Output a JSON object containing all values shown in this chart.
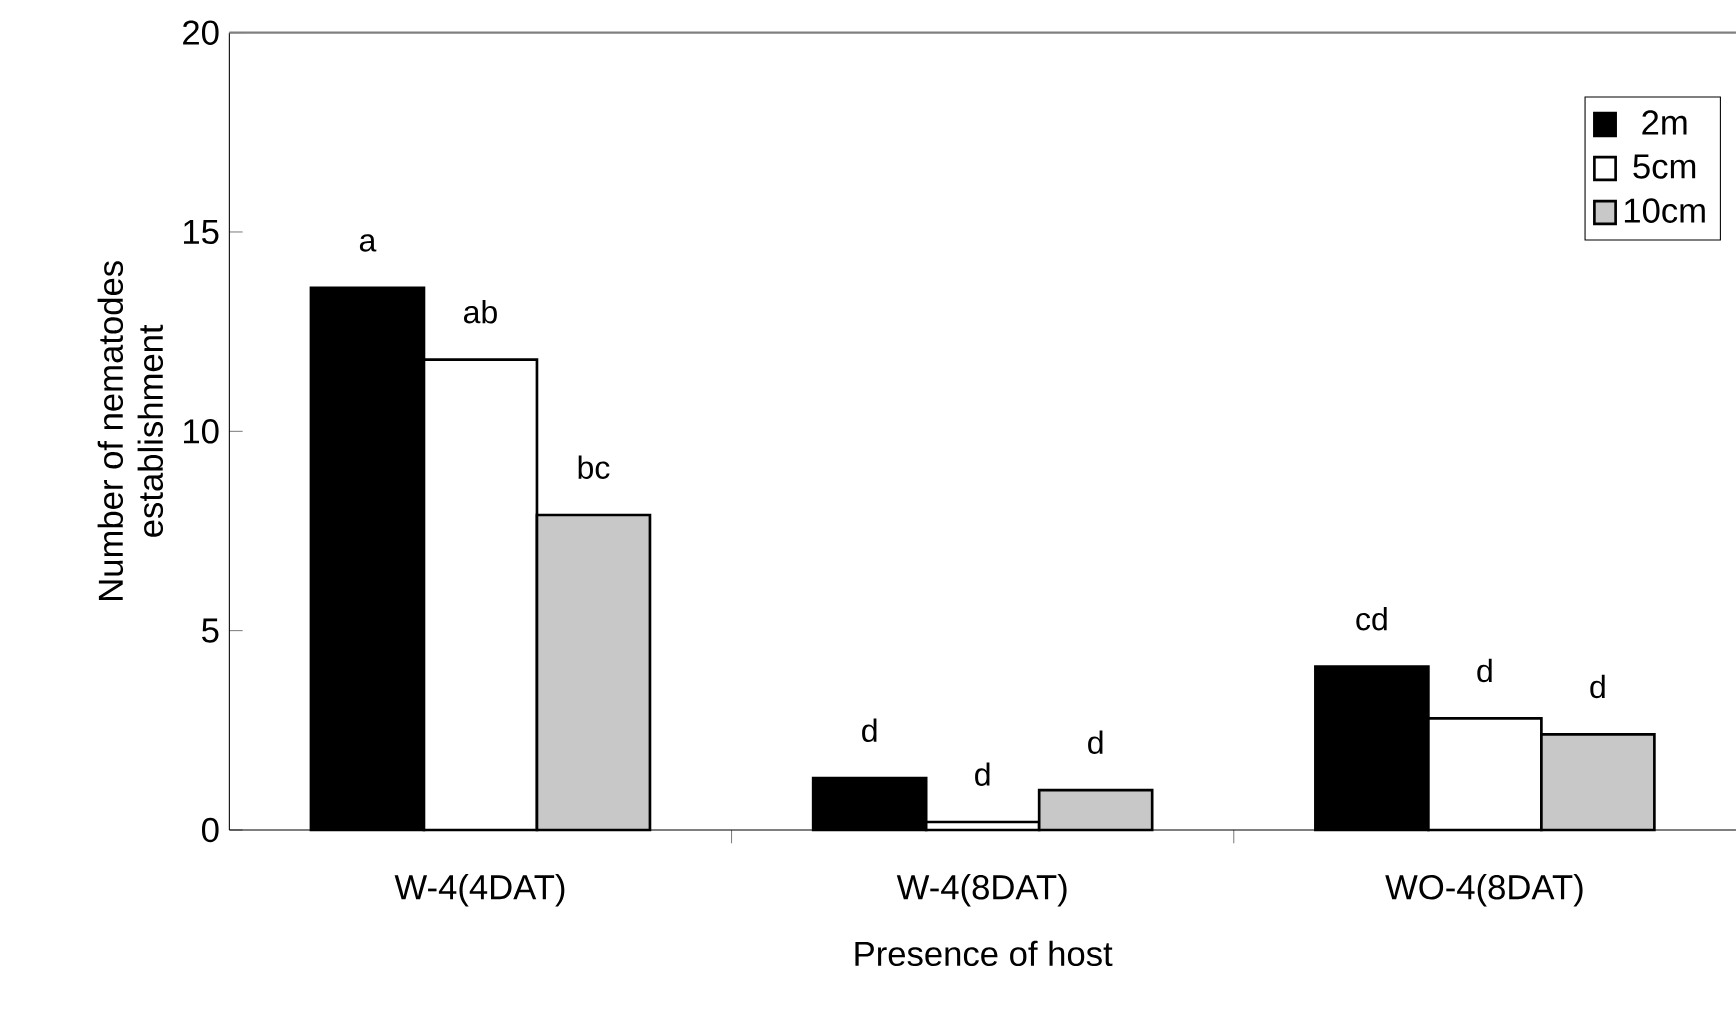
{
  "chart_data": {
    "type": "bar",
    "xlabel": "Presence of host",
    "ylabel": "Number of nematodes\nestablishment",
    "categories": [
      "W-4(4DAT)",
      "W-4(8DAT)",
      "WO-4(8DAT)"
    ],
    "series": [
      {
        "name": "2m",
        "color": "#000000",
        "values": [
          13.6,
          1.3,
          4.1
        ],
        "value_labels": [
          "a",
          "d",
          "cd"
        ]
      },
      {
        "name": "5cm",
        "color": "#ffffff",
        "values": [
          11.8,
          0.2,
          2.8
        ],
        "value_labels": [
          "ab",
          "d",
          "d"
        ]
      },
      {
        "name": "10cm",
        "color": "#c8c8c8",
        "values": [
          7.9,
          1.0,
          2.4
        ],
        "value_labels": [
          "bc",
          "d",
          "d"
        ]
      }
    ],
    "ylim": [
      0,
      20
    ],
    "yticks": [
      0,
      5,
      10,
      15,
      20
    ],
    "legend": "top right",
    "grid": false
  }
}
